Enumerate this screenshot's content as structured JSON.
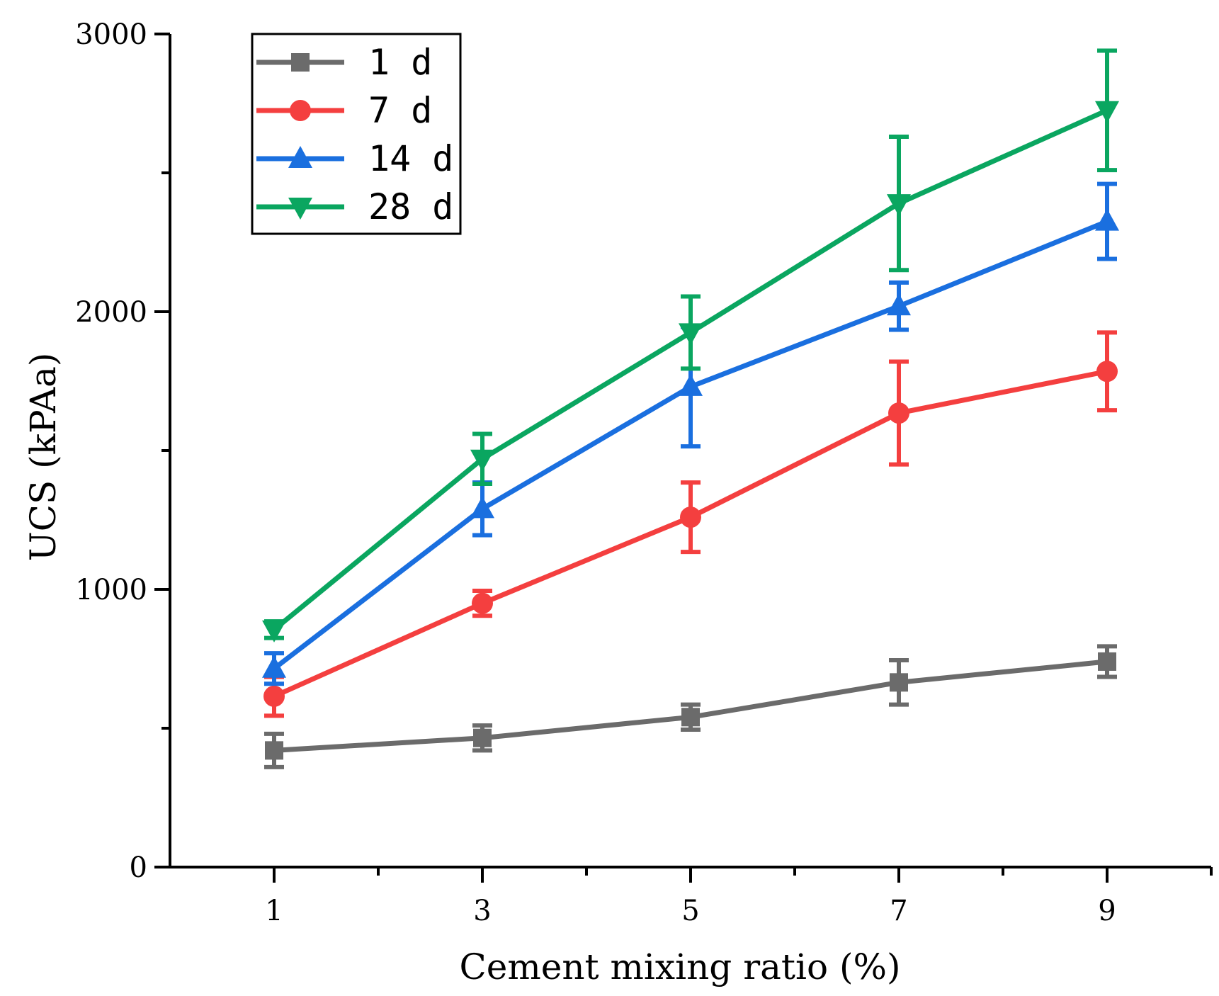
{
  "chart_data": {
    "type": "line",
    "title": "",
    "xlabel": "Cement mixing ratio (%)",
    "ylabel": "UCS (kPAa)",
    "x": [
      1,
      3,
      5,
      7,
      9
    ],
    "x_ticks": [
      1,
      3,
      5,
      7,
      9
    ],
    "x_tick_labels": [
      "1",
      "3",
      "5",
      "7",
      "9"
    ],
    "xlim": [
      0,
      10
    ],
    "y_ticks": [
      0,
      1000,
      2000,
      3000
    ],
    "y_tick_labels": [
      "0",
      "1000",
      "2000",
      "3000"
    ],
    "ylim": [
      0,
      3000
    ],
    "grid": false,
    "legend_position": "top-left",
    "series": [
      {
        "name": "1 d",
        "color": "#6b6b6b",
        "marker": "square",
        "values": [
          420,
          465,
          540,
          665,
          740
        ],
        "error": [
          60,
          45,
          45,
          80,
          55
        ]
      },
      {
        "name": "7 d",
        "color": "#f43f3f",
        "marker": "circle",
        "values": [
          615,
          950,
          1260,
          1635,
          1785
        ],
        "error": [
          70,
          45,
          125,
          185,
          140
        ]
      },
      {
        "name": "14 d",
        "color": "#1a6fdf",
        "marker": "triangle-up",
        "values": [
          715,
          1290,
          1730,
          2020,
          2325
        ],
        "error": [
          55,
          95,
          215,
          85,
          135
        ]
      },
      {
        "name": "28 d",
        "color": "#0aa660",
        "marker": "triangle-down",
        "values": [
          855,
          1470,
          1925,
          2390,
          2725
        ],
        "error": [
          30,
          90,
          130,
          240,
          215
        ]
      }
    ]
  }
}
